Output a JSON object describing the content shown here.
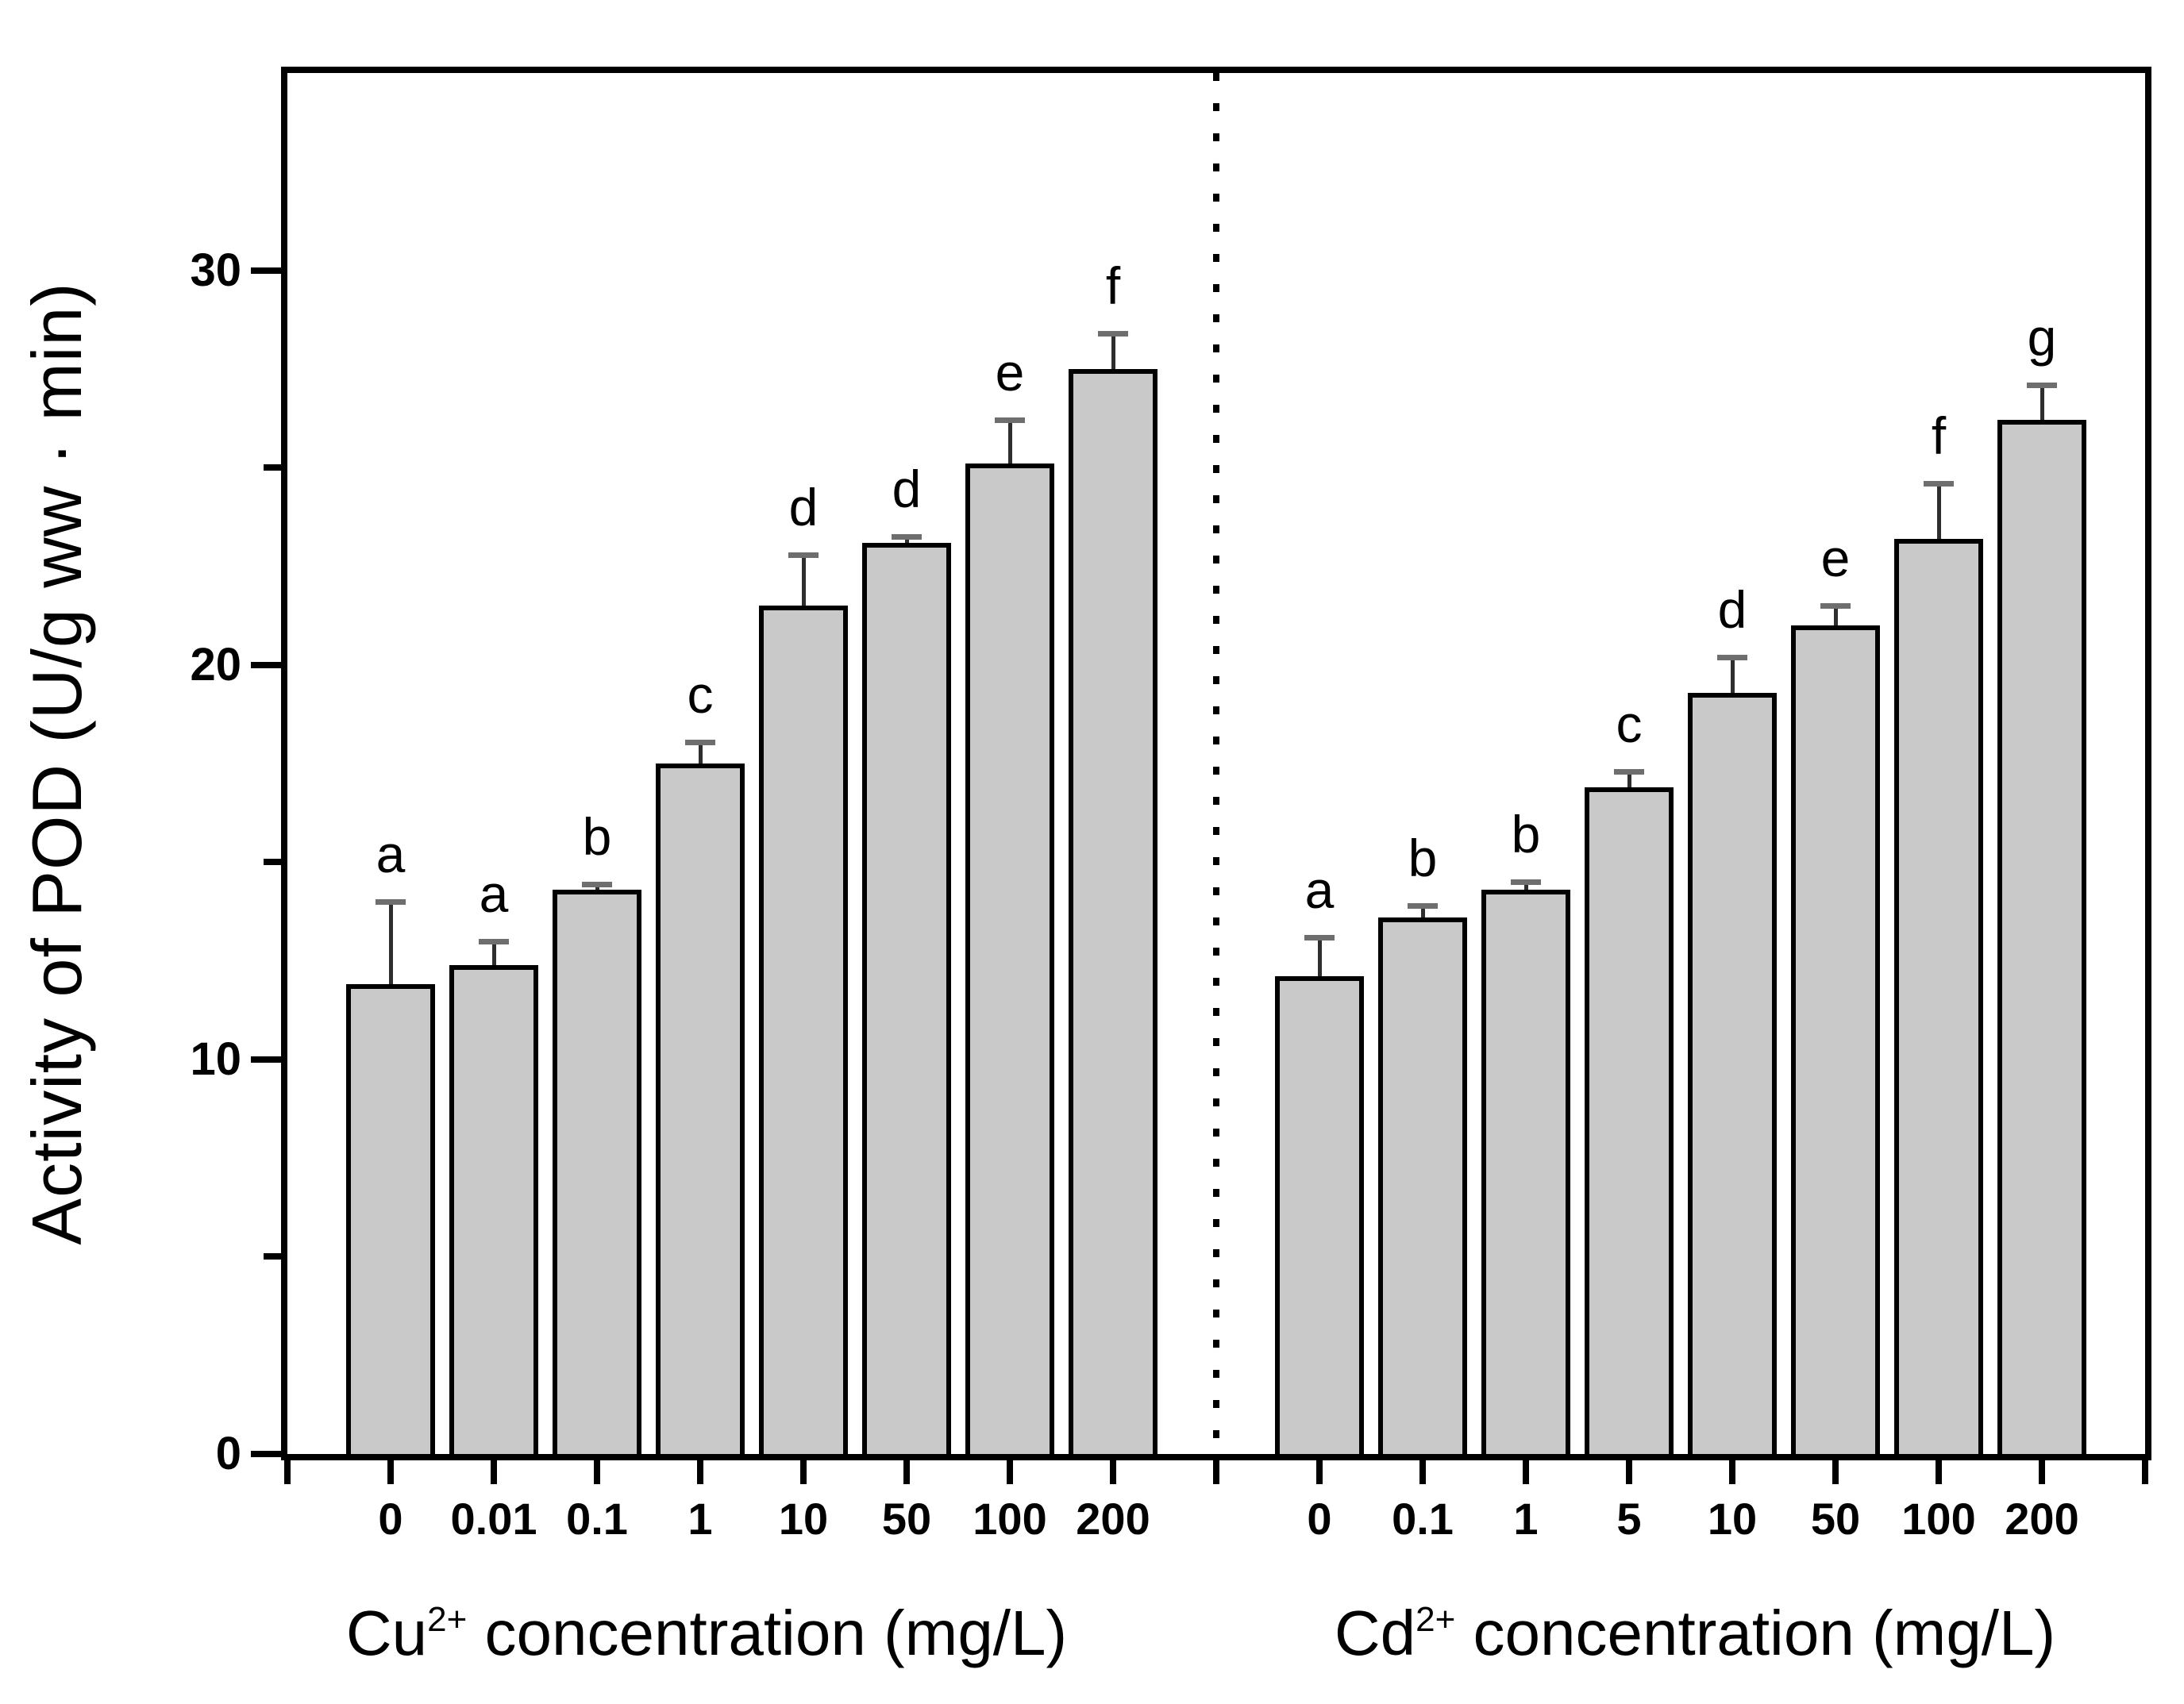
{
  "figure": {
    "background": "#ffffff",
    "bar_fill": "#c9c9c9",
    "bar_border": "#000000",
    "error_stem_color": "#2e2e2e",
    "error_cap_color": "#6e6e6e"
  },
  "y_axis": {
    "label": "Activity of POD (U/g ww · min)",
    "major_ticks": [
      {
        "value": 0,
        "label": "0"
      },
      {
        "value": 10,
        "label": "10"
      },
      {
        "value": 20,
        "label": "20"
      },
      {
        "value": 30,
        "label": "30"
      }
    ],
    "minor_tick_values": [
      5,
      15,
      25
    ],
    "max": 35
  },
  "chart_data": {
    "type": "bar",
    "title": "",
    "ylabel": "Activity of POD (U/g ww · min)",
    "ylim": [
      0,
      35
    ],
    "yticks": [
      0,
      10,
      20,
      30
    ],
    "grid": false,
    "legend_position": "none",
    "divider": "dotted vertical line between the two concentration groups",
    "groups": [
      {
        "name": "Cu2+",
        "xlabel_base": "Cu",
        "xlabel_sup": "2+",
        "xlabel_rest": " concentration (mg/L)",
        "categories": [
          "0",
          "0.01",
          "0.1",
          "1",
          "10",
          "50",
          "100",
          "200"
        ],
        "values": [
          11.9,
          12.4,
          14.3,
          17.5,
          21.5,
          23.1,
          25.1,
          27.5
        ],
        "errors": [
          2.1,
          0.6,
          0.15,
          0.55,
          1.3,
          0.15,
          1.1,
          0.9
        ],
        "letters": [
          "a",
          "a",
          "b",
          "c",
          "d",
          "d",
          "e",
          "f"
        ]
      },
      {
        "name": "Cd2+",
        "xlabel_base": "Cd",
        "xlabel_sup": "2+",
        "xlabel_rest": " concentration (mg/L)",
        "categories": [
          "0",
          "0.1",
          "1",
          "5",
          "10",
          "50",
          "100",
          "200"
        ],
        "values": [
          12.1,
          13.6,
          14.3,
          16.9,
          19.3,
          21.0,
          23.2,
          26.2
        ],
        "errors": [
          1.0,
          0.3,
          0.2,
          0.4,
          0.9,
          0.5,
          1.4,
          0.9
        ],
        "letters": [
          "a",
          "b",
          "b",
          "c",
          "d",
          "e",
          "f",
          "g"
        ]
      }
    ]
  }
}
